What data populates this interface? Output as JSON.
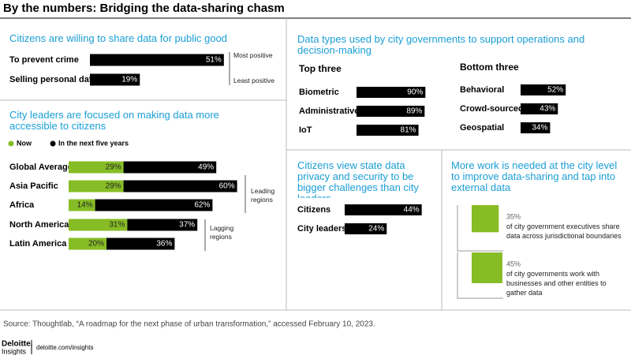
{
  "title": "By the numbers: Bridging the data-sharing chasm",
  "chart_data": [
    {
      "type": "bar",
      "title": "Citizens are willing to share data for public good",
      "categories": [
        "To prevent crime",
        "Selling personal data"
      ],
      "values": [
        51,
        19
      ],
      "value_labels": [
        "51%",
        "19%"
      ],
      "color": "#000000",
      "xlim": [
        0,
        100
      ],
      "annotations": [
        "Most positive",
        "Least positive"
      ]
    },
    {
      "type": "stacked-bar",
      "title": "City leaders are focused on making data more accessible to citizens",
      "categories": [
        "Global Average",
        "Asia Pacific",
        "Africa",
        "North America",
        "Latin America"
      ],
      "series": [
        {
          "name": "Now",
          "color": "#86bc25",
          "values": [
            29,
            29,
            14,
            31,
            20
          ],
          "value_labels": [
            "29%",
            "29%",
            "14%",
            "31%",
            "20%"
          ]
        },
        {
          "name": "In the next five years",
          "color": "#000000",
          "values": [
            49,
            60,
            62,
            37,
            36
          ],
          "value_labels": [
            "49%",
            "60%",
            "62%",
            "37%",
            "36%"
          ]
        }
      ],
      "xlim": [
        0,
        100
      ],
      "annotations": [
        "Leading regions",
        "Lagging regions"
      ]
    },
    {
      "type": "bar",
      "title": "Data types used by city governments to support operations and decision-making",
      "subtitle": "Top three",
      "categories": [
        "Biometric",
        "Administrative",
        "IoT"
      ],
      "values": [
        90,
        89,
        81
      ],
      "value_labels": [
        "90%",
        "89%",
        "81%"
      ],
      "color": "#000000",
      "xlim": [
        0,
        100
      ]
    },
    {
      "type": "bar",
      "subtitle": "Bottom three",
      "categories": [
        "Behavioral",
        "Crowd-sourced",
        "Geospatial"
      ],
      "values": [
        52,
        43,
        34
      ],
      "value_labels": [
        "52%",
        "43%",
        "34%"
      ],
      "color": "#000000",
      "xlim": [
        0,
        100
      ]
    },
    {
      "type": "bar",
      "title": "Citizens view state data privacy and security to be bigger challenges than city leaders",
      "categories": [
        "Citizens",
        "City leaders"
      ],
      "values": [
        44,
        24
      ],
      "value_labels": [
        "44%",
        "24%"
      ],
      "color": "#000000",
      "xlim": [
        0,
        100
      ]
    },
    {
      "type": "square",
      "title": "More work is needed at the city level to improve data-sharing and tap into external data",
      "categories": [
        "of city government executives share data across jurisdictional boundaries",
        "of city governments work with businesses and other entities to gather data"
      ],
      "values": [
        35,
        45
      ],
      "value_labels": [
        "35%",
        "45%"
      ],
      "color": "#86bc25"
    }
  ],
  "source": "Source: Thoughtlab, “A roadmap for the next phase of urban transformation,” accessed February 10, 2023.",
  "footer": {
    "brand": "Deloitte.",
    "sub": "Insights",
    "url": "deloitte.com/insights"
  }
}
